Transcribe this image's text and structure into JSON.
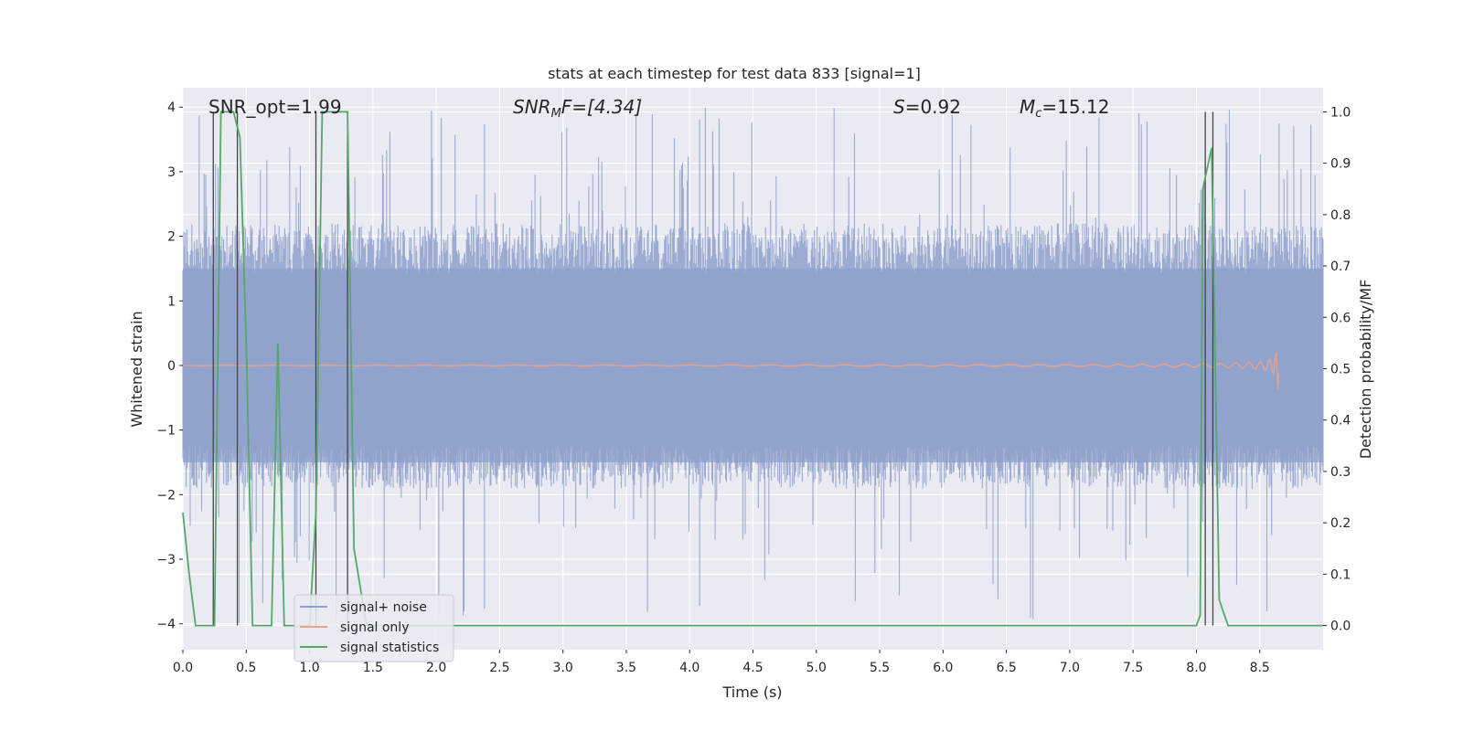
{
  "chart_data": {
    "type": "line",
    "title": "stats at each timestep for test data 833 [signal=1]",
    "xlabel": "Time (s)",
    "ylabel": "Whitened strain",
    "y2label": "Detection probability/MF",
    "xlim": [
      0.0,
      9.0
    ],
    "ylim": [
      -4.4,
      4.3
    ],
    "y2lim": [
      -0.047,
      1.047
    ],
    "xticks": [
      "0.0",
      "0.5",
      "1.0",
      "1.5",
      "2.0",
      "2.5",
      "3.0",
      "3.5",
      "4.0",
      "4.5",
      "5.0",
      "5.5",
      "6.0",
      "6.5",
      "7.0",
      "7.5",
      "8.0",
      "8.5"
    ],
    "yticks": [
      "4",
      "3",
      "2",
      "1",
      "0",
      "−1",
      "−2",
      "−3",
      "−4"
    ],
    "y2ticks": [
      "1.0",
      "0.9",
      "0.8",
      "0.7",
      "0.6",
      "0.5",
      "0.4",
      "0.3",
      "0.2",
      "0.1",
      "0.0"
    ],
    "grid": true,
    "legend_position": "lower-left",
    "annotations": {
      "snr_opt": "SNR_opt=1.99",
      "snr_mf_sym": "SNR",
      "snr_mf_sub": "M",
      "snr_mf_rest": "F=[4.34]",
      "s_sym": "S",
      "s_rest": "=0.92",
      "mc_sym": "M",
      "mc_sub": "c",
      "mc_rest": "=15.12"
    },
    "series": [
      {
        "name": "signal+ noise",
        "color": "#8da0cb",
        "description_type": "noise",
        "envelope": {
          "upper_typical": 2.2,
          "upper_max": 4.0,
          "lower_typical": -1.9,
          "lower_max": -4.0
        }
      },
      {
        "name": "signal only",
        "color": "#e9a38a",
        "description_type": "chirp",
        "x_end": 8.65,
        "max_amplitude": 0.45
      },
      {
        "name": "signal statistics",
        "color": "#55a868",
        "axis": "right",
        "x": [
          0.0,
          0.05,
          0.1,
          0.25,
          0.3,
          0.4,
          0.45,
          0.5,
          0.55,
          0.65,
          0.7,
          0.75,
          0.8,
          0.9,
          1.0,
          1.05,
          1.1,
          1.3,
          1.35,
          1.45,
          1.5,
          8.0,
          8.03,
          8.05,
          8.12,
          8.18,
          8.25,
          9.0
        ],
        "y": [
          0.22,
          0.1,
          0.0,
          0.0,
          1.0,
          1.0,
          0.95,
          0.55,
          0.0,
          0.0,
          0.0,
          0.55,
          0.0,
          0.0,
          0.0,
          0.22,
          1.0,
          1.0,
          0.15,
          0.0,
          0.0,
          0.0,
          0.02,
          0.85,
          0.93,
          0.05,
          0.0,
          0.0
        ]
      }
    ],
    "vertical_markers": [
      0.24,
      0.43,
      1.05,
      1.3,
      8.07,
      8.13
    ],
    "vertical_markers_color": "#444444"
  }
}
